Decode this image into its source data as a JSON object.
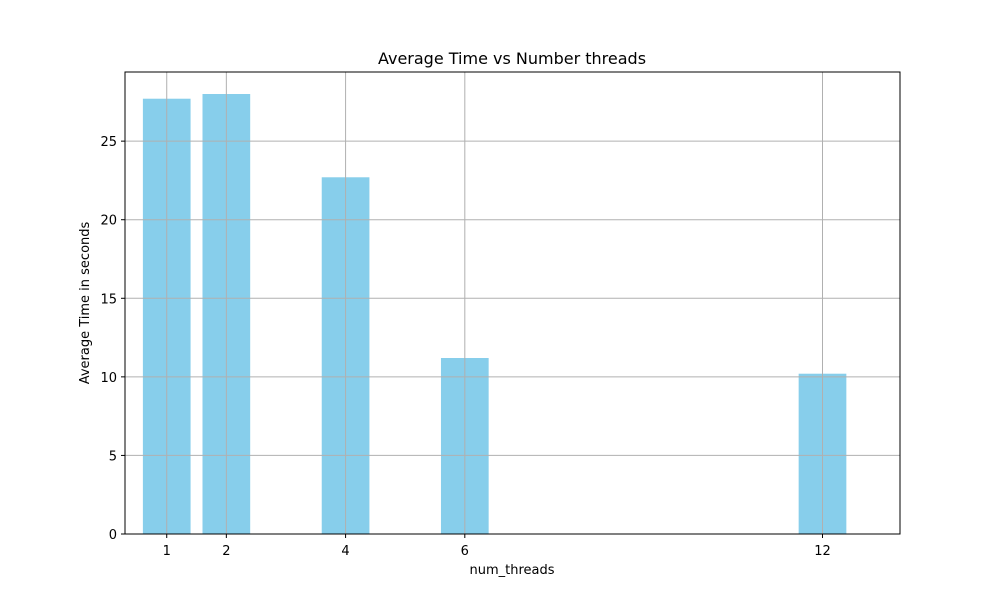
{
  "chart_data": {
    "type": "bar",
    "title": "Average Time vs Number threads",
    "xlabel": "num_threads",
    "ylabel": "Average Time in seconds",
    "x": [
      1,
      2,
      4,
      6,
      12
    ],
    "values": [
      27.7,
      28.0,
      22.7,
      11.2,
      10.2
    ],
    "xticks": [
      1,
      2,
      4,
      6,
      12
    ],
    "yticks": [
      0,
      5,
      10,
      15,
      20,
      25
    ],
    "xlim": [
      0.3,
      13.3
    ],
    "ylim": [
      0,
      29.4
    ],
    "bar_width": 0.8,
    "grid": true,
    "colors": {
      "bar": "#87ceeb",
      "grid": "#b0b0b0",
      "axes": "#000000"
    }
  }
}
